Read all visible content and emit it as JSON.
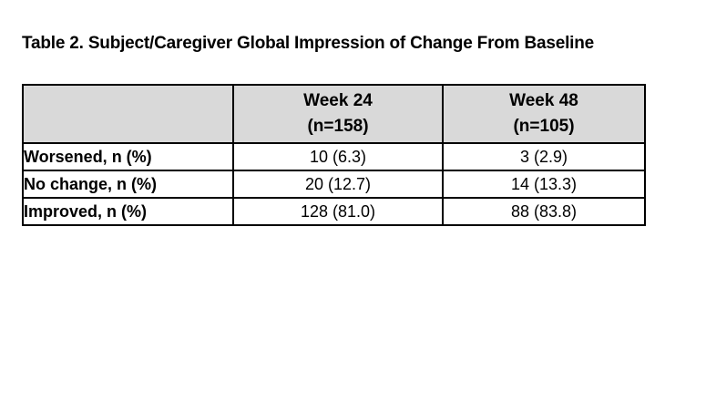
{
  "title": "Table 2. Subject/Caregiver Global Impression of Change From Baseline",
  "table": {
    "header": {
      "corner": "",
      "columns": [
        {
          "label": "Week 24",
          "sublabel": "(n=158)"
        },
        {
          "label": "Week 48",
          "sublabel": "(n=105)"
        }
      ]
    },
    "rows": [
      {
        "label": "Worsened, n (%)",
        "week24": "10 (6.3)",
        "week48": "3 (2.9)"
      },
      {
        "label": "No change, n (%)",
        "week24": "20 (12.7)",
        "week48": "14 (13.3)"
      },
      {
        "label": "Improved, n (%)",
        "week24": "128 (81.0)",
        "week48": "88 (83.8)"
      }
    ]
  },
  "colors": {
    "header_bg": "#d9d9d9",
    "border": "#000000",
    "text": "#000000",
    "background": "#ffffff"
  }
}
